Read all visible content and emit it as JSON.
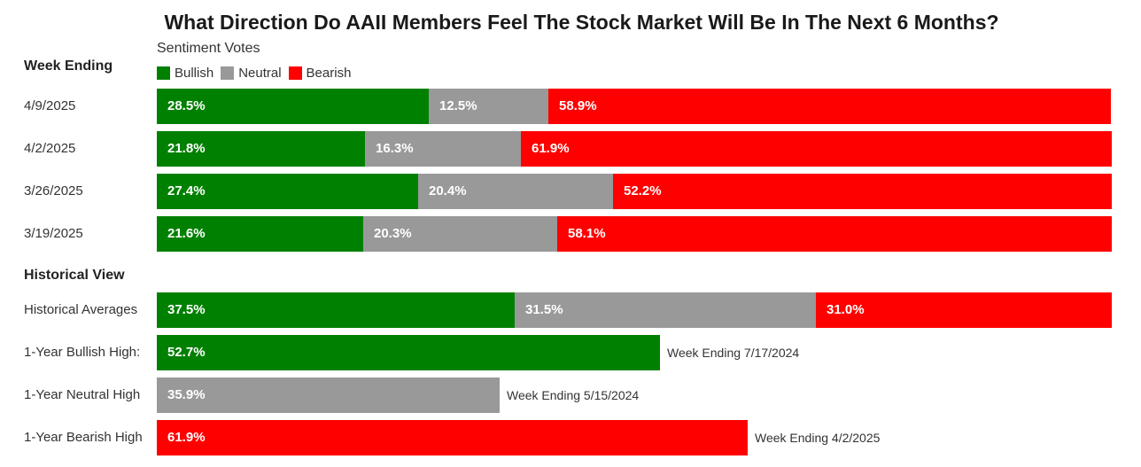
{
  "title": "What Direction Do AAII Members Feel The Stock Market Will Be In The Next 6 Months?",
  "subtitle": "Sentiment Votes",
  "week_ending_label": "Week Ending",
  "historical_view_label": "Historical View",
  "colors": {
    "bullish": "#008000",
    "neutral": "#999999",
    "bearish": "#ff0000"
  },
  "chart_data": [
    {
      "type": "bar",
      "orientation": "horizontal",
      "stacked": true,
      "title": "What Direction Do AAII Members Feel The Stock Market Will Be In The Next 6 Months?",
      "subtitle": "Sentiment Votes",
      "legend": [
        "Bullish",
        "Neutral",
        "Bearish"
      ],
      "legend_position": "top-left",
      "categories": [
        "4/9/2025",
        "4/2/2025",
        "3/26/2025",
        "3/19/2025"
      ],
      "series": [
        {
          "name": "Bullish",
          "values": [
            28.5,
            21.8,
            27.4,
            21.6
          ],
          "labels": [
            "28.5%",
            "21.8%",
            "27.4%",
            "21.6%"
          ]
        },
        {
          "name": "Neutral",
          "values": [
            12.5,
            16.3,
            20.4,
            20.3
          ],
          "labels": [
            "12.5%",
            "16.3%",
            "20.4%",
            "20.3%"
          ]
        },
        {
          "name": "Bearish",
          "values": [
            58.9,
            61.9,
            52.2,
            58.1
          ],
          "labels": [
            "58.9%",
            "61.9%",
            "52.2%",
            "58.1%"
          ]
        }
      ],
      "xlim": [
        0,
        100
      ],
      "grid": false
    },
    {
      "type": "bar",
      "orientation": "horizontal",
      "stacked": true,
      "title": "Historical View",
      "rows": [
        {
          "label": "Historical Averages",
          "segments": [
            {
              "series": "Bullish",
              "value": 37.5,
              "label": "37.5%"
            },
            {
              "series": "Neutral",
              "value": 31.5,
              "label": "31.5%"
            },
            {
              "series": "Bearish",
              "value": 31.0,
              "label": "31.0%"
            }
          ],
          "note": ""
        },
        {
          "label": "1-Year Bullish High:",
          "segments": [
            {
              "series": "Bullish",
              "value": 52.7,
              "label": "52.7%"
            }
          ],
          "note": "Week Ending 7/17/2024"
        },
        {
          "label": "1-Year Neutral High",
          "segments": [
            {
              "series": "Neutral",
              "value": 35.9,
              "label": "35.9%"
            }
          ],
          "note": "Week Ending 5/15/2024"
        },
        {
          "label": "1-Year Bearish High",
          "segments": [
            {
              "series": "Bearish",
              "value": 61.9,
              "label": "61.9%"
            }
          ],
          "note": "Week Ending 4/2/2025"
        }
      ],
      "xlim": [
        0,
        100
      ],
      "grid": false
    }
  ]
}
